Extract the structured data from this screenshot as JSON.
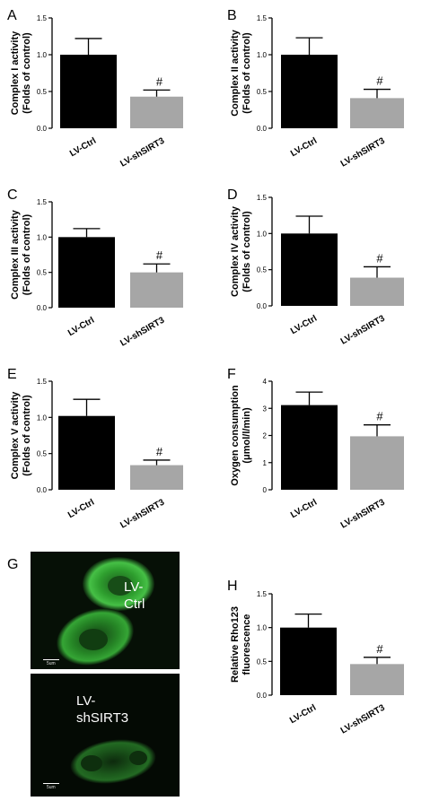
{
  "chart_data": [
    {
      "panel": "A",
      "type": "bar",
      "ylabel": [
        "Complex I activity",
        "(Folds of control)"
      ],
      "categories": [
        "LV-Ctrl",
        "LV-shSIRT3"
      ],
      "values": [
        1.0,
        0.43
      ],
      "errors": [
        0.22,
        0.09
      ],
      "colors": [
        "#000000",
        "#a6a6a6"
      ],
      "significance": [
        "",
        "#"
      ],
      "yticks": [
        "0.0",
        "0.5",
        "1.0",
        "1.5"
      ],
      "ylim": [
        0,
        1.5
      ]
    },
    {
      "panel": "B",
      "type": "bar",
      "ylabel": [
        "Complex II activity",
        "(Folds of control)"
      ],
      "categories": [
        "LV-Ctrl",
        "LV-shSIRT3"
      ],
      "values": [
        1.0,
        0.41
      ],
      "errors": [
        0.23,
        0.12
      ],
      "colors": [
        "#000000",
        "#a6a6a6"
      ],
      "significance": [
        "",
        "#"
      ],
      "yticks": [
        "0.0",
        "0.5",
        "1.0",
        "1.5"
      ],
      "ylim": [
        0,
        1.5
      ]
    },
    {
      "panel": "C",
      "type": "bar",
      "ylabel": [
        "Complex III activity",
        "(Folds of control)"
      ],
      "categories": [
        "LV-Ctrl",
        "LV-shSIRT3"
      ],
      "values": [
        1.0,
        0.5
      ],
      "errors": [
        0.12,
        0.12
      ],
      "colors": [
        "#000000",
        "#a6a6a6"
      ],
      "significance": [
        "",
        "#"
      ],
      "yticks": [
        "0.0",
        "0.5",
        "1.0",
        "1.5"
      ],
      "ylim": [
        0,
        1.5
      ]
    },
    {
      "panel": "D",
      "type": "bar",
      "ylabel": [
        "Complex IV activity",
        "(Folds of control)"
      ],
      "categories": [
        "LV-Ctrl",
        "LV-shSIRT3"
      ],
      "values": [
        1.0,
        0.39
      ],
      "errors": [
        0.24,
        0.15
      ],
      "colors": [
        "#000000",
        "#a6a6a6"
      ],
      "significance": [
        "",
        "#"
      ],
      "yticks": [
        "0.0",
        "0.5",
        "1.0",
        "1.5"
      ],
      "ylim": [
        0,
        1.5
      ]
    },
    {
      "panel": "E",
      "type": "bar",
      "ylabel": [
        "Complex V activity",
        "(Folds of control)"
      ],
      "categories": [
        "LV-Ctrl",
        "LV-shSIRT3"
      ],
      "values": [
        1.02,
        0.34
      ],
      "errors": [
        0.23,
        0.07
      ],
      "colors": [
        "#000000",
        "#a6a6a6"
      ],
      "significance": [
        "",
        "#"
      ],
      "yticks": [
        "0.0",
        "0.5",
        "1.0",
        "1.5"
      ],
      "ylim": [
        0,
        1.5
      ]
    },
    {
      "panel": "F",
      "type": "bar",
      "ylabel": [
        "Oxygen consumption",
        "(μmol/l/min)"
      ],
      "categories": [
        "LV-Ctrl",
        "LV-shSIRT3"
      ],
      "values": [
        3.12,
        1.97
      ],
      "errors": [
        0.48,
        0.42
      ],
      "colors": [
        "#000000",
        "#a6a6a6"
      ],
      "significance": [
        "",
        "#"
      ],
      "yticks": [
        "0",
        "1",
        "2",
        "3",
        "4"
      ],
      "ylim": [
        0,
        4
      ]
    },
    {
      "panel": "H",
      "type": "bar",
      "ylabel": [
        "Relative Rho123",
        "fluorescence"
      ],
      "categories": [
        "LV-Ctrl",
        "LV-shSIRT3"
      ],
      "values": [
        1.0,
        0.46
      ],
      "errors": [
        0.2,
        0.1
      ],
      "colors": [
        "#000000",
        "#a6a6a6"
      ],
      "significance": [
        "",
        "#"
      ],
      "yticks": [
        "0.0",
        "0.5",
        "1.0",
        "1.5"
      ],
      "ylim": [
        0,
        1.5
      ]
    }
  ],
  "micrographs": {
    "panel": "G",
    "images": [
      {
        "label": [
          "LV-",
          "Ctrl"
        ],
        "scale_label": "5um",
        "tone": "bright"
      },
      {
        "label": [
          "LV-",
          "shSIRT3"
        ],
        "scale_label": "5um",
        "tone": "dim"
      }
    ]
  }
}
